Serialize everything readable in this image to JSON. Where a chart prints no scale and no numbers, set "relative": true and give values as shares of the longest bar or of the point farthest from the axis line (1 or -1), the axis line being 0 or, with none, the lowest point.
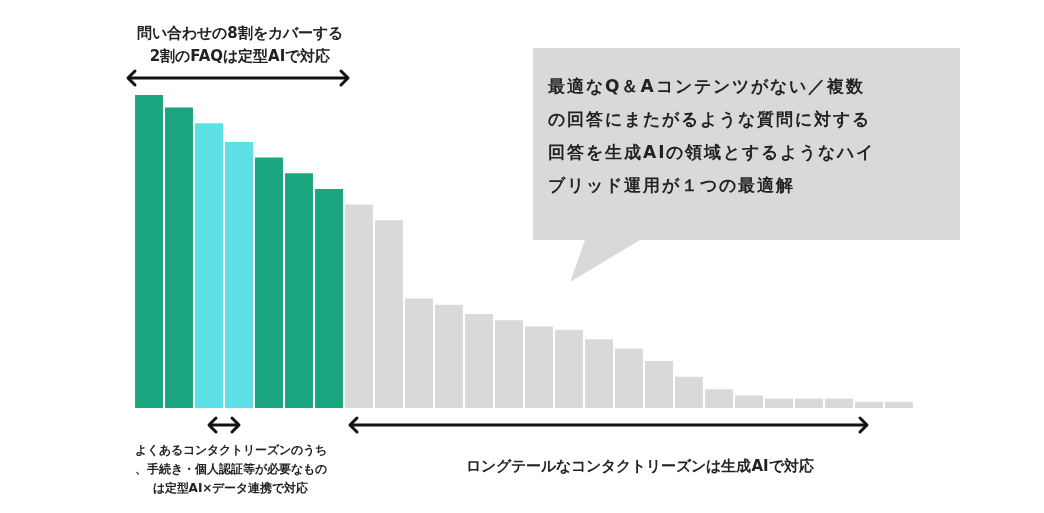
{
  "chart_data": {
    "type": "bar",
    "relative": true,
    "categories": [
      null,
      null,
      null,
      null,
      null,
      null,
      null,
      null,
      null,
      null,
      null,
      null,
      null,
      null,
      null,
      null,
      null,
      null,
      null,
      null,
      null,
      null,
      null,
      null,
      null,
      null
    ],
    "values": [
      1.0,
      0.96,
      0.91,
      0.85,
      0.8,
      0.75,
      0.7,
      0.65,
      0.6,
      0.35,
      0.33,
      0.3,
      0.28,
      0.26,
      0.25,
      0.22,
      0.19,
      0.15,
      0.1,
      0.06,
      0.04,
      0.03,
      0.03,
      0.03,
      0.02,
      0.02
    ],
    "colors": [
      "#1aa67f",
      "#1aa67f",
      "#5ce0e6",
      "#5ce0e6",
      "#1aa67f",
      "#1aa67f",
      "#1aa67f",
      "#d9d9d9",
      "#d9d9d9",
      "#d9d9d9",
      "#d9d9d9",
      "#d9d9d9",
      "#d9d9d9",
      "#d9d9d9",
      "#d9d9d9",
      "#d9d9d9",
      "#d9d9d9",
      "#d9d9d9",
      "#d9d9d9",
      "#d9d9d9",
      "#d9d9d9",
      "#d9d9d9",
      "#d9d9d9",
      "#d9d9d9",
      "#d9d9d9",
      "#d9d9d9"
    ],
    "annotations": [
      "問い合わせの8割をカバーする2割のFAQは定型AIで対応",
      "最適なQ＆Aコンテンツがない／複数の回答にまたがるような質問に対する回答を生成AIの領域とするようなハイブリッド運用が１つの最適解",
      "よくあるコンタクトリーズンのうち、手続き・個人認証等が必要なものは定型AI×データ連携で対応",
      "ロングテールなコンタクトリーズンは生成AIで対応"
    ]
  }
}
